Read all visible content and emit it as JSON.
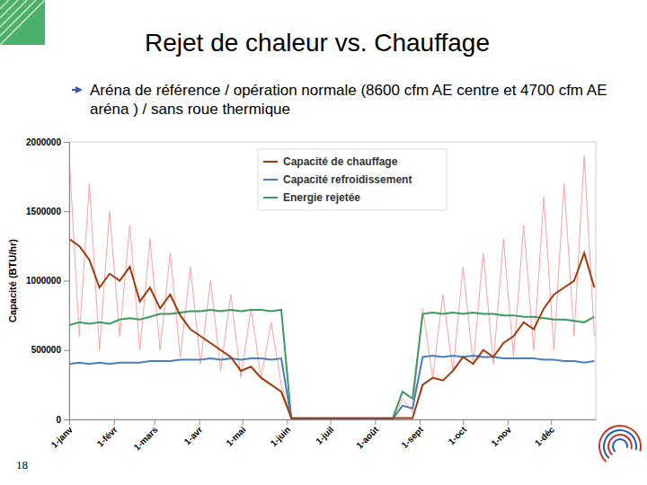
{
  "chart_data": {
    "type": "line",
    "title": "Rejet de chaleur vs. Chauffage",
    "subtitle": "Aréna de référence / opération normale (8600 cfm AE centre et 4700 cfm AE aréna ) / sans roue thermique",
    "y_label": "Capacité (BTU/hr)",
    "annotations": [
      "18"
    ],
    "x": [
      0,
      7,
      14,
      21,
      28,
      35,
      42,
      49,
      56,
      63,
      70,
      77,
      84,
      91,
      98,
      105,
      112,
      119,
      126,
      133,
      140,
      147,
      154,
      161,
      168,
      175,
      182,
      189,
      196,
      203,
      210,
      217,
      224,
      231,
      238,
      245,
      252,
      259,
      266,
      273,
      280,
      287,
      294,
      301,
      308,
      315,
      322,
      329,
      336,
      343,
      350,
      357,
      364
    ],
    "xlim": [
      0,
      365
    ],
    "xticks": [
      {
        "value": 0,
        "label": "1-janv"
      },
      {
        "value": 31,
        "label": "1-févr"
      },
      {
        "value": 59,
        "label": "1-mars"
      },
      {
        "value": 90,
        "label": "1-avr"
      },
      {
        "value": 120,
        "label": "1-mai"
      },
      {
        "value": 151,
        "label": "1-juin"
      },
      {
        "value": 181,
        "label": "1-juil"
      },
      {
        "value": 212,
        "label": "1-août"
      },
      {
        "value": 243,
        "label": "1-sept"
      },
      {
        "value": 273,
        "label": "1-oct"
      },
      {
        "value": 304,
        "label": "1-nov"
      },
      {
        "value": 334,
        "label": "1-déc"
      }
    ],
    "ylim": [
      0,
      2000000
    ],
    "yticks": [
      0,
      500000,
      1000000,
      1500000,
      2000000
    ],
    "grid": false,
    "legend": "top",
    "series": [
      {
        "name": "Capacité de chauffage",
        "color": "#9e3b0c",
        "values": [
          1300000,
          1250000,
          1150000,
          950000,
          1050000,
          1000000,
          1100000,
          850000,
          950000,
          800000,
          900000,
          750000,
          650000,
          600000,
          550000,
          500000,
          450000,
          350000,
          380000,
          300000,
          250000,
          200000,
          10000,
          10000,
          10000,
          10000,
          10000,
          10000,
          10000,
          10000,
          10000,
          10000,
          10000,
          10000,
          10000,
          250000,
          300000,
          280000,
          350000,
          450000,
          400000,
          500000,
          450000,
          550000,
          600000,
          700000,
          650000,
          800000,
          900000,
          950000,
          1000000,
          1200000,
          950000
        ]
      },
      {
        "name": "Capacité refroidissement",
        "color": "#4a7ebb",
        "values": [
          400000,
          410000,
          400000,
          410000,
          400000,
          410000,
          410000,
          410000,
          420000,
          420000,
          420000,
          430000,
          430000,
          430000,
          440000,
          430000,
          440000,
          430000,
          440000,
          440000,
          430000,
          440000,
          0,
          0,
          0,
          0,
          0,
          0,
          0,
          0,
          0,
          0,
          0,
          100000,
          80000,
          450000,
          460000,
          450000,
          460000,
          450000,
          460000,
          450000,
          450000,
          440000,
          440000,
          440000,
          440000,
          430000,
          430000,
          420000,
          420000,
          410000,
          420000
        ]
      },
      {
        "name": "Energie rejetée",
        "color": "#3a9a60",
        "values": [
          680000,
          700000,
          690000,
          700000,
          690000,
          720000,
          730000,
          720000,
          740000,
          760000,
          760000,
          770000,
          780000,
          780000,
          790000,
          780000,
          790000,
          780000,
          790000,
          790000,
          780000,
          790000,
          0,
          0,
          0,
          0,
          0,
          0,
          0,
          0,
          0,
          0,
          0,
          200000,
          150000,
          760000,
          770000,
          760000,
          770000,
          760000,
          770000,
          760000,
          760000,
          750000,
          750000,
          740000,
          740000,
          730000,
          720000,
          720000,
          710000,
          700000,
          740000
        ]
      },
      {
        "color": "#f4a3a3",
        "values": [
          1900000,
          600000,
          1700000,
          500000,
          1500000,
          600000,
          1400000,
          500000,
          1300000,
          500000,
          1200000,
          450000,
          1100000,
          400000,
          1000000,
          350000,
          900000,
          300000,
          800000,
          300000,
          700000,
          250000,
          0,
          0,
          0,
          0,
          0,
          0,
          0,
          0,
          0,
          0,
          0,
          150000,
          50000,
          800000,
          300000,
          900000,
          350000,
          1100000,
          400000,
          1200000,
          400000,
          1300000,
          450000,
          1400000,
          500000,
          1600000,
          500000,
          1700000,
          600000,
          1900000,
          600000
        ]
      }
    ]
  }
}
